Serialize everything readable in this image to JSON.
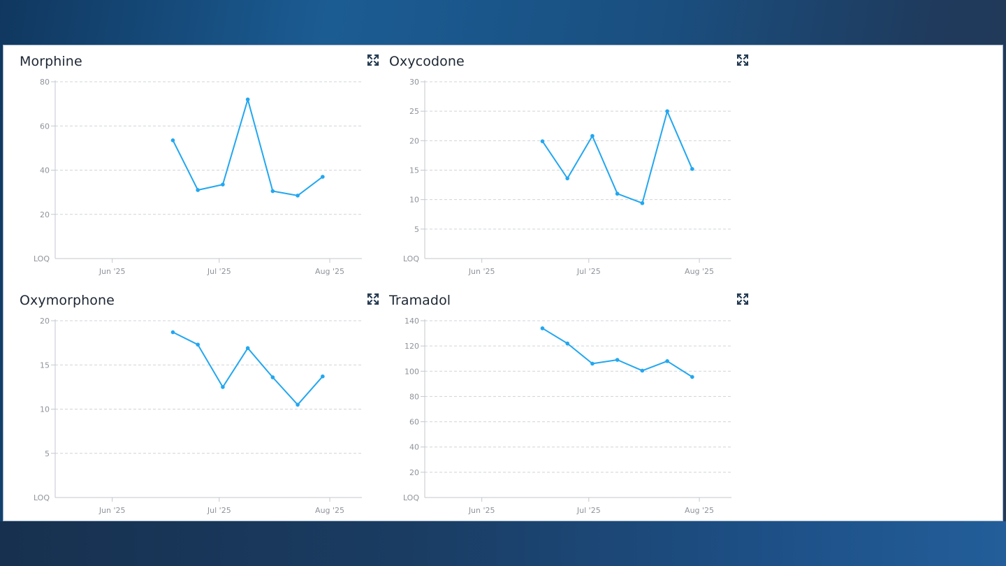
{
  "colors": {
    "line": "#22a7f0",
    "grid": "#cfd3d8",
    "axis": "#c3c7cc",
    "tick_text": "#8e939a",
    "title_text": "#1d2733"
  },
  "icons": {
    "expand": "expand-icon"
  },
  "chart_data": [
    {
      "type": "line",
      "title": "Morphine",
      "y_ticks": [
        "LOQ",
        "20",
        "40",
        "60",
        "80"
      ],
      "ylim": [
        0,
        80
      ],
      "x_ticks": [
        "Jun '25",
        "Jul '25",
        "Aug '25"
      ],
      "x": [
        "2025-06-18",
        "2025-06-25",
        "2025-07-02",
        "2025-07-09",
        "2025-07-16",
        "2025-07-23",
        "2025-07-30"
      ],
      "series": [
        {
          "values": [
            53.5,
            31,
            33.5,
            72,
            30.5,
            28.5,
            37
          ]
        }
      ]
    },
    {
      "type": "line",
      "title": "Oxycodone",
      "y_ticks": [
        "LOQ",
        "5",
        "10",
        "15",
        "20",
        "25",
        "30"
      ],
      "ylim": [
        0,
        30
      ],
      "x_ticks": [
        "Jun '25",
        "Jul '25",
        "Aug '25"
      ],
      "x": [
        "2025-06-18",
        "2025-06-25",
        "2025-07-02",
        "2025-07-09",
        "2025-07-16",
        "2025-07-23",
        "2025-07-30"
      ],
      "series": [
        {
          "values": [
            19.9,
            13.6,
            20.8,
            11,
            9.4,
            25,
            15.2
          ]
        }
      ]
    },
    {
      "type": "line",
      "title": "Oxymorphone",
      "y_ticks": [
        "LOQ",
        "5",
        "10",
        "15",
        "20"
      ],
      "ylim": [
        0,
        20
      ],
      "x_ticks": [
        "Jun '25",
        "Jul '25",
        "Aug '25"
      ],
      "x": [
        "2025-06-18",
        "2025-06-25",
        "2025-07-02",
        "2025-07-09",
        "2025-07-16",
        "2025-07-23",
        "2025-07-30"
      ],
      "series": [
        {
          "values": [
            18.7,
            17.3,
            12.5,
            16.9,
            13.6,
            10.5,
            13.7
          ]
        }
      ]
    },
    {
      "type": "line",
      "title": "Tramadol",
      "y_ticks": [
        "LOQ",
        "20",
        "40",
        "60",
        "80",
        "100",
        "120",
        "140"
      ],
      "ylim": [
        0,
        140
      ],
      "x_ticks": [
        "Jun '25",
        "Jul '25",
        "Aug '25"
      ],
      "x": [
        "2025-06-18",
        "2025-06-25",
        "2025-07-02",
        "2025-07-09",
        "2025-07-16",
        "2025-07-23",
        "2025-07-30"
      ],
      "series": [
        {
          "values": [
            134,
            122,
            106,
            109,
            100.5,
            108,
            95.5
          ]
        }
      ]
    }
  ]
}
